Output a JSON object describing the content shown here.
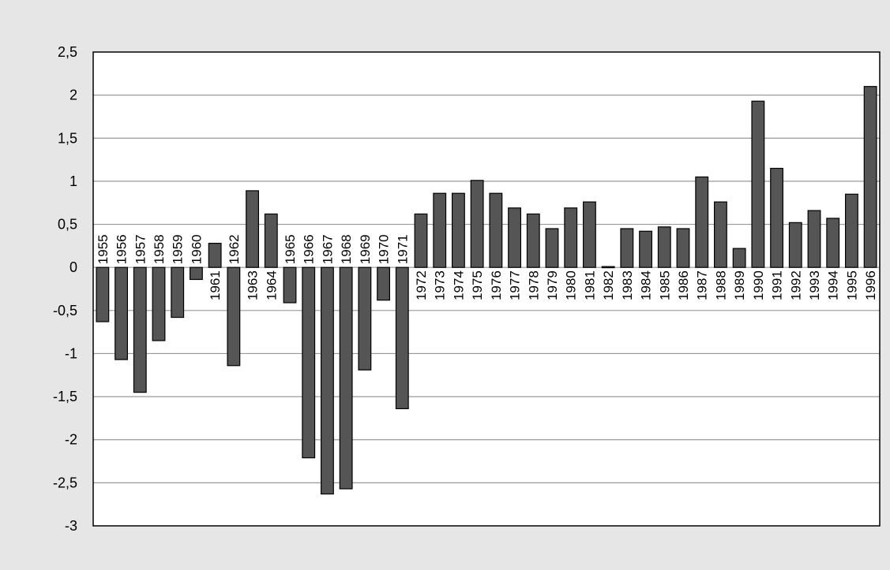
{
  "chart_data": {
    "type": "bar",
    "title": "",
    "xlabel": "",
    "ylabel": "",
    "ylim": [
      -3,
      2.5
    ],
    "yticks": [
      2.5,
      2,
      1.5,
      1,
      0.5,
      0,
      -0.5,
      -1,
      -1.5,
      -2,
      -2.5,
      -3
    ],
    "ytick_labels": [
      "2,5",
      "2",
      "1,5",
      "1",
      "0,5",
      "0",
      "-0,5",
      "-1",
      "-1,5",
      "-2",
      "-2,5",
      "-3"
    ],
    "grid": true,
    "legend": "none",
    "categories": [
      "1955",
      "1956",
      "1957",
      "1958",
      "1959",
      "1960",
      "1961",
      "1962",
      "1963",
      "1964",
      "1965",
      "1966",
      "1967",
      "1968",
      "1969",
      "1970",
      "1971",
      "1972",
      "1973",
      "1974",
      "1975",
      "1976",
      "1977",
      "1978",
      "1979",
      "1980",
      "1981",
      "1982",
      "1983",
      "1984",
      "1985",
      "1986",
      "1987",
      "1988",
      "1989",
      "1990",
      "1991",
      "1992",
      "1993",
      "1994",
      "1995",
      "1996"
    ],
    "values": [
      -0.63,
      -1.07,
      -1.45,
      -0.85,
      -0.58,
      -0.14,
      0.28,
      -1.14,
      0.89,
      0.62,
      -0.41,
      -2.21,
      -2.63,
      -2.57,
      -1.19,
      -0.38,
      -1.64,
      0.62,
      0.86,
      0.86,
      1.01,
      0.86,
      0.69,
      0.62,
      0.45,
      0.69,
      0.76,
      0.01,
      0.45,
      0.42,
      0.47,
      0.45,
      1.05,
      0.76,
      0.22,
      1.93,
      1.15,
      0.52,
      0.66,
      0.57,
      0.85,
      2.1
    ],
    "colors": {
      "bar_fill": "#555555",
      "bar_stroke": "#000000",
      "plot_bg": "#ffffff",
      "grid": "#999999",
      "page_bg": "#e6e6e6"
    }
  }
}
